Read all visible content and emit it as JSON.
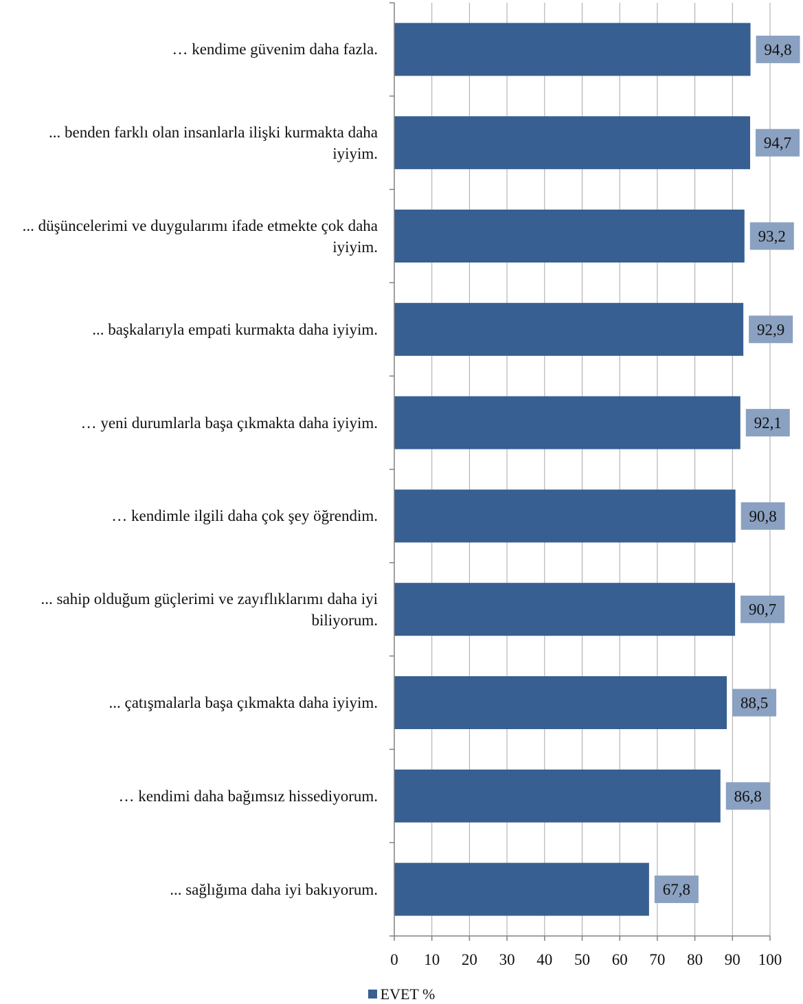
{
  "chart_data": {
    "type": "bar",
    "orientation": "horizontal",
    "categories": [
      "… kendime güvenim daha fazla.",
      "... benden farklı olan insanlarla ilişki kurmakta daha iyiyim.",
      "... düşüncelerimi ve duygularımı ifade etmekte çok daha iyiyim.",
      "... başkalarıyla empati kurmakta daha iyiyim.",
      "… yeni durumlarla başa çıkmakta daha iyiyim.",
      "… kendimle ilgili daha çok şey  öğrendim.",
      "... sahip olduğum güçlerimi ve zayıflıklarımı daha iyi biliyorum.",
      "... çatışmalarla başa çıkmakta daha iyiyim.",
      "… kendimi daha bağımsız hissediyorum.",
      "... sağlığıma daha iyi bakıyorum."
    ],
    "series": [
      {
        "name": "EVET %",
        "values": [
          94.8,
          94.7,
          93.2,
          92.9,
          92.1,
          90.8,
          90.7,
          88.5,
          86.8,
          67.8
        ],
        "value_labels": [
          "94,8",
          "94,7",
          "93,2",
          "92,9",
          "92,1",
          "90,8",
          "90,7",
          "88,5",
          "86,8",
          "67,8"
        ]
      }
    ],
    "xlim": [
      0,
      100
    ],
    "xticks": [
      0,
      10,
      20,
      30,
      40,
      50,
      60,
      70,
      80,
      90,
      100
    ],
    "grid": true,
    "legend_position": "bottom",
    "colors": {
      "bar": "#375f91",
      "label_box": "#8aa1c1",
      "grid": "#a6a6a6",
      "axis": "#808080",
      "text": "#111111"
    }
  }
}
